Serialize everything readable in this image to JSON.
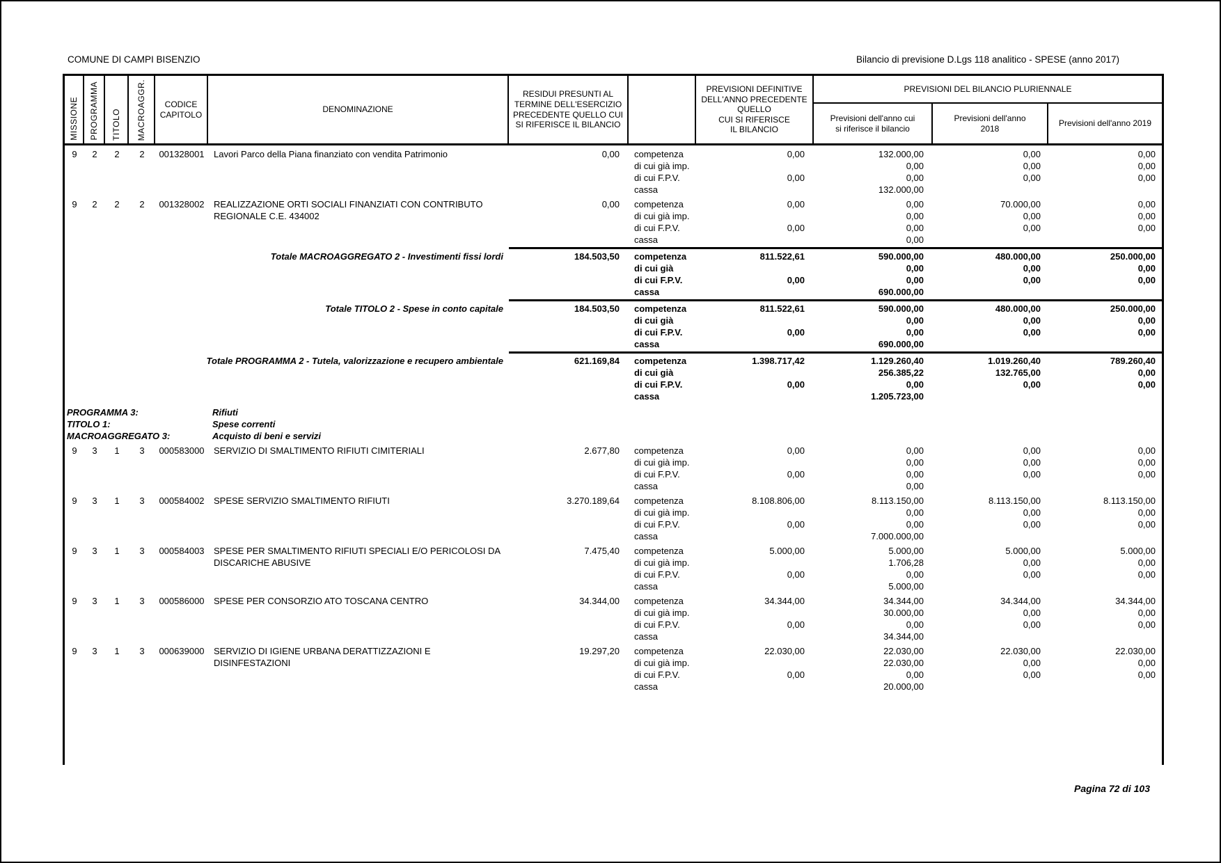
{
  "header": {
    "left": "COMUNE DI CAMPI BISENZIO",
    "right": "Bilancio di previsione D.Lgs 118 analitico - SPESE (anno 2017)"
  },
  "table": {
    "columns": {
      "missione": "MISSIONE",
      "programma": "PROGRAMMA",
      "titolo": "TITOLO",
      "macroaggr": "MACROAGGR.",
      "codice": "CODICE\nCAPITOLO",
      "denominazione": "DENOMINAZIONE",
      "residui": "RESIDUI PRESUNTI AL\nTERMINE DELL'ESERCIZIO\nPRECEDENTE QUELLO CUI\nSI RIFERISCE IL BILANCIO",
      "previsioni_definitive": "PREVISIONI DEFINITIVE\nDELL'ANNO PRECEDENTE\nQUELLO\nCUI SI RIFERISCE\nIL BILANCIO",
      "pluriennale": "PREVISIONI DEL BILANCIO PLURIENNALE",
      "anno_bilancio": "Previsioni dell'anno cui\nsi riferisce il bilancio",
      "anno_2018": "Previsioni dell'anno\n2018",
      "anno_2019": "Previsioni dell'anno 2019"
    },
    "rows": [
      {
        "type": "entry",
        "missione": "9",
        "programma": "2",
        "titolo": "2",
        "macroaggr": "2",
        "codice": "001328001",
        "denominazione": "Lavori Parco della Piana finanziato con vendita Patrimonio",
        "residui": "0,00",
        "lines": [
          {
            "label": "competenza",
            "prev_def": "0,00",
            "anno_bilancio": "132.000,00",
            "anno_2018": "0,00",
            "anno_2019": "0,00"
          },
          {
            "label": "di cui già imp.",
            "prev_def": "",
            "anno_bilancio": "0,00",
            "anno_2018": "0,00",
            "anno_2019": "0,00"
          },
          {
            "label": "di cui F.P.V.",
            "prev_def": "0,00",
            "anno_bilancio": "0,00",
            "anno_2018": "0,00",
            "anno_2019": "0,00"
          },
          {
            "label": "cassa",
            "prev_def": "",
            "anno_bilancio": "132.000,00",
            "anno_2018": "",
            "anno_2019": ""
          }
        ]
      },
      {
        "type": "entry",
        "missione": "9",
        "programma": "2",
        "titolo": "2",
        "macroaggr": "2",
        "codice": "001328002",
        "denominazione": "REALIZZAZIONE ORTI SOCIALI FINANZIATI CON CONTRIBUTO REGIONALE C.E. 434002",
        "residui": "0,00",
        "lines": [
          {
            "label": "competenza",
            "prev_def": "0,00",
            "anno_bilancio": "0,00",
            "anno_2018": "70.000,00",
            "anno_2019": "0,00"
          },
          {
            "label": "di cui già imp.",
            "prev_def": "",
            "anno_bilancio": "0,00",
            "anno_2018": "0,00",
            "anno_2019": "0,00"
          },
          {
            "label": "di cui F.P.V.",
            "prev_def": "0,00",
            "anno_bilancio": "0,00",
            "anno_2018": "0,00",
            "anno_2019": "0,00"
          },
          {
            "label": "cassa",
            "prev_def": "",
            "anno_bilancio": "0,00",
            "anno_2018": "",
            "anno_2019": ""
          }
        ]
      },
      {
        "type": "total",
        "denominazione": "Totale MACROAGGREGATO 2 - Investimenti fissi lordi",
        "residui": "184.503,50",
        "lines": [
          {
            "label": "competenza",
            "prev_def": "811.522,61",
            "anno_bilancio": "590.000,00",
            "anno_2018": "480.000,00",
            "anno_2019": "250.000,00"
          },
          {
            "label": "di cui già",
            "prev_def": "",
            "anno_bilancio": "0,00",
            "anno_2018": "0,00",
            "anno_2019": "0,00"
          },
          {
            "label": "di cui F.P.V.",
            "prev_def": "0,00",
            "anno_bilancio": "0,00",
            "anno_2018": "0,00",
            "anno_2019": "0,00"
          },
          {
            "label": "cassa",
            "prev_def": "",
            "anno_bilancio": "690.000,00",
            "anno_2018": "",
            "anno_2019": ""
          }
        ]
      },
      {
        "type": "total",
        "denominazione": "Totale TITOLO 2 - Spese in conto capitale",
        "residui": "184.503,50",
        "lines": [
          {
            "label": "competenza",
            "prev_def": "811.522,61",
            "anno_bilancio": "590.000,00",
            "anno_2018": "480.000,00",
            "anno_2019": "250.000,00"
          },
          {
            "label": "di cui già",
            "prev_def": "",
            "anno_bilancio": "0,00",
            "anno_2018": "0,00",
            "anno_2019": "0,00"
          },
          {
            "label": "di cui F.P.V.",
            "prev_def": "0,00",
            "anno_bilancio": "0,00",
            "anno_2018": "0,00",
            "anno_2019": "0,00"
          },
          {
            "label": "cassa",
            "prev_def": "",
            "anno_bilancio": "690.000,00",
            "anno_2018": "",
            "anno_2019": ""
          }
        ]
      },
      {
        "type": "total",
        "denominazione": "Totale PROGRAMMA 2 - Tutela, valorizzazione e recupero ambientale",
        "residui": "621.169,84",
        "lines": [
          {
            "label": "competenza",
            "prev_def": "1.398.717,42",
            "anno_bilancio": "1.129.260,40",
            "anno_2018": "1.019.260,40",
            "anno_2019": "789.260,40"
          },
          {
            "label": "di cui già",
            "prev_def": "",
            "anno_bilancio": "256.385,22",
            "anno_2018": "132.765,00",
            "anno_2019": "0,00"
          },
          {
            "label": "di cui F.P.V.",
            "prev_def": "0,00",
            "anno_bilancio": "0,00",
            "anno_2018": "0,00",
            "anno_2019": "0,00"
          },
          {
            "label": "cassa",
            "prev_def": "",
            "anno_bilancio": "1.205.723,00",
            "anno_2018": "",
            "anno_2019": ""
          }
        ]
      },
      {
        "type": "section",
        "items": [
          {
            "label": "PROGRAMMA 3:",
            "value": "Rifiuti"
          },
          {
            "label": "TITOLO 1:",
            "value": "Spese correnti"
          },
          {
            "label": "MACROAGGREGATO 3:",
            "value": "Acquisto di beni e servizi"
          }
        ]
      },
      {
        "type": "entry",
        "missione": "9",
        "programma": "3",
        "titolo": "1",
        "macroaggr": "3",
        "codice": "000583000",
        "denominazione": "SERVIZIO DI SMALTIMENTO RIFIUTI CIMITERIALI",
        "residui": "2.677,80",
        "lines": [
          {
            "label": "competenza",
            "prev_def": "0,00",
            "anno_bilancio": "0,00",
            "anno_2018": "0,00",
            "anno_2019": "0,00"
          },
          {
            "label": "di cui già imp.",
            "prev_def": "",
            "anno_bilancio": "0,00",
            "anno_2018": "0,00",
            "anno_2019": "0,00"
          },
          {
            "label": "di cui F.P.V.",
            "prev_def": "0,00",
            "anno_bilancio": "0,00",
            "anno_2018": "0,00",
            "anno_2019": "0,00"
          },
          {
            "label": "cassa",
            "prev_def": "",
            "anno_bilancio": "0,00",
            "anno_2018": "",
            "anno_2019": ""
          }
        ]
      },
      {
        "type": "entry",
        "missione": "9",
        "programma": "3",
        "titolo": "1",
        "macroaggr": "3",
        "codice": "000584002",
        "denominazione": "SPESE SERVIZIO SMALTIMENTO RIFIUTI",
        "residui": "3.270.189,64",
        "lines": [
          {
            "label": "competenza",
            "prev_def": "8.108.806,00",
            "anno_bilancio": "8.113.150,00",
            "anno_2018": "8.113.150,00",
            "anno_2019": "8.113.150,00"
          },
          {
            "label": "di cui già imp.",
            "prev_def": "",
            "anno_bilancio": "0,00",
            "anno_2018": "0,00",
            "anno_2019": "0,00"
          },
          {
            "label": "di cui F.P.V.",
            "prev_def": "0,00",
            "anno_bilancio": "0,00",
            "anno_2018": "0,00",
            "anno_2019": "0,00"
          },
          {
            "label": "cassa",
            "prev_def": "",
            "anno_bilancio": "7.000.000,00",
            "anno_2018": "",
            "anno_2019": ""
          }
        ]
      },
      {
        "type": "entry",
        "missione": "9",
        "programma": "3",
        "titolo": "1",
        "macroaggr": "3",
        "codice": "000584003",
        "denominazione": "SPESE PER SMALTIMENTO RIFIUTI SPECIALI E/O PERICOLOSI DA DISCARICHE ABUSIVE",
        "residui": "7.475,40",
        "lines": [
          {
            "label": "competenza",
            "prev_def": "5.000,00",
            "anno_bilancio": "5.000,00",
            "anno_2018": "5.000,00",
            "anno_2019": "5.000,00"
          },
          {
            "label": "di cui già imp.",
            "prev_def": "",
            "anno_bilancio": "1.706,28",
            "anno_2018": "0,00",
            "anno_2019": "0,00"
          },
          {
            "label": "di cui F.P.V.",
            "prev_def": "0,00",
            "anno_bilancio": "0,00",
            "anno_2018": "0,00",
            "anno_2019": "0,00"
          },
          {
            "label": "cassa",
            "prev_def": "",
            "anno_bilancio": "5.000,00",
            "anno_2018": "",
            "anno_2019": ""
          }
        ]
      },
      {
        "type": "entry",
        "missione": "9",
        "programma": "3",
        "titolo": "1",
        "macroaggr": "3",
        "codice": "000586000",
        "denominazione": "SPESE PER CONSORZIO ATO TOSCANA CENTRO",
        "residui": "34.344,00",
        "lines": [
          {
            "label": "competenza",
            "prev_def": "34.344,00",
            "anno_bilancio": "34.344,00",
            "anno_2018": "34.344,00",
            "anno_2019": "34.344,00"
          },
          {
            "label": "di cui già imp.",
            "prev_def": "",
            "anno_bilancio": "30.000,00",
            "anno_2018": "0,00",
            "anno_2019": "0,00"
          },
          {
            "label": "di cui F.P.V.",
            "prev_def": "0,00",
            "anno_bilancio": "0,00",
            "anno_2018": "0,00",
            "anno_2019": "0,00"
          },
          {
            "label": "cassa",
            "prev_def": "",
            "anno_bilancio": "34.344,00",
            "anno_2018": "",
            "anno_2019": ""
          }
        ]
      },
      {
        "type": "entry",
        "missione": "9",
        "programma": "3",
        "titolo": "1",
        "macroaggr": "3",
        "codice": "000639000",
        "denominazione": "SERVIZIO DI IGIENE URBANA DERATTIZZAZIONI E DISINFESTAZIONI",
        "residui": "19.297,20",
        "lines": [
          {
            "label": "competenza",
            "prev_def": "22.030,00",
            "anno_bilancio": "22.030,00",
            "anno_2018": "22.030,00",
            "anno_2019": "22.030,00"
          },
          {
            "label": "di cui già imp.",
            "prev_def": "",
            "anno_bilancio": "22.030,00",
            "anno_2018": "0,00",
            "anno_2019": "0,00"
          },
          {
            "label": "di cui F.P.V.",
            "prev_def": "0,00",
            "anno_bilancio": "0,00",
            "anno_2018": "0,00",
            "anno_2019": "0,00"
          },
          {
            "label": "cassa",
            "prev_def": "",
            "anno_bilancio": "20.000,00",
            "anno_2018": "",
            "anno_2019": ""
          }
        ]
      }
    ]
  },
  "footer": {
    "page_label": "Pagina 72 di 103"
  }
}
